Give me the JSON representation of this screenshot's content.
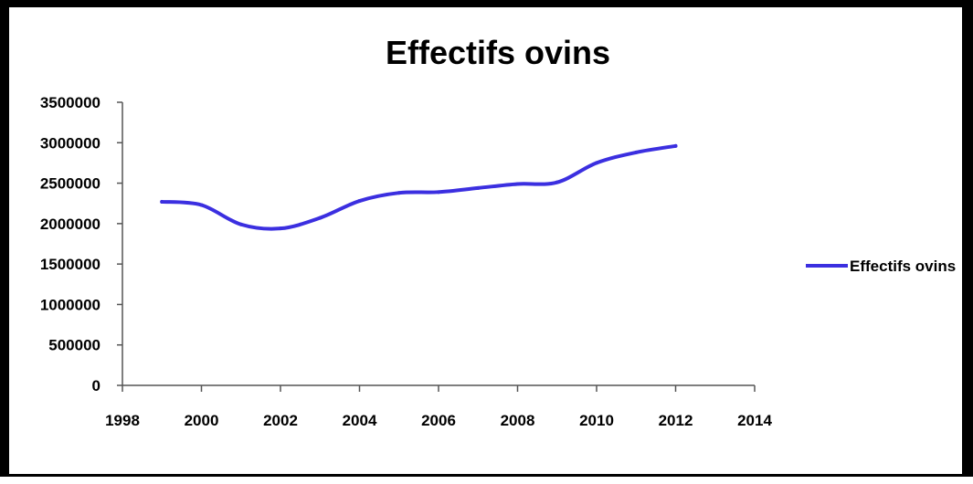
{
  "chart_data": {
    "type": "line",
    "title": "Effectifs ovins",
    "xlabel": "",
    "ylabel": "",
    "xlim": [
      1998,
      2014
    ],
    "ylim": [
      0,
      3500000
    ],
    "x_ticks": [
      "1998",
      "2000",
      "2002",
      "2004",
      "2006",
      "2008",
      "2010",
      "2012",
      "2014"
    ],
    "y_ticks": [
      "0",
      "500000",
      "1000000",
      "1500000",
      "2000000",
      "2500000",
      "3000000",
      "3500000"
    ],
    "grid": false,
    "legend_position": "right",
    "series": [
      {
        "name": "Effectifs ovins",
        "color": "#3b2fe0",
        "x": [
          1999,
          2000,
          2001,
          2002,
          2003,
          2004,
          2005,
          2006,
          2007,
          2008,
          2009,
          2010,
          2011,
          2012
        ],
        "values": [
          2270000,
          2230000,
          1990000,
          1940000,
          2070000,
          2280000,
          2380000,
          2390000,
          2440000,
          2490000,
          2510000,
          2750000,
          2880000,
          2960000
        ]
      }
    ]
  }
}
